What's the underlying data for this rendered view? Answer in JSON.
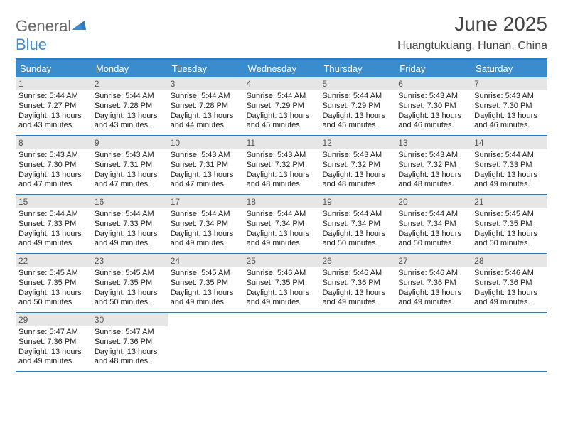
{
  "logo": {
    "text1": "General",
    "text2": "Blue"
  },
  "header": {
    "title": "June 2025",
    "location": "Huangtukuang, Hunan, China"
  },
  "colors": {
    "header_bar": "#3a8ccc",
    "week_divider": "#2f7bbf",
    "daynum_bg": "#e6e6e6",
    "text": "#222222",
    "logo_gray": "#6a6a6a",
    "logo_blue": "#3a8ccc"
  },
  "days_of_week": [
    "Sunday",
    "Monday",
    "Tuesday",
    "Wednesday",
    "Thursday",
    "Friday",
    "Saturday"
  ],
  "days": [
    {
      "n": "1",
      "sunrise": "5:44 AM",
      "sunset": "7:27 PM",
      "daylight": "13 hours and 43 minutes."
    },
    {
      "n": "2",
      "sunrise": "5:44 AM",
      "sunset": "7:28 PM",
      "daylight": "13 hours and 43 minutes."
    },
    {
      "n": "3",
      "sunrise": "5:44 AM",
      "sunset": "7:28 PM",
      "daylight": "13 hours and 44 minutes."
    },
    {
      "n": "4",
      "sunrise": "5:44 AM",
      "sunset": "7:29 PM",
      "daylight": "13 hours and 45 minutes."
    },
    {
      "n": "5",
      "sunrise": "5:44 AM",
      "sunset": "7:29 PM",
      "daylight": "13 hours and 45 minutes."
    },
    {
      "n": "6",
      "sunrise": "5:43 AM",
      "sunset": "7:30 PM",
      "daylight": "13 hours and 46 minutes."
    },
    {
      "n": "7",
      "sunrise": "5:43 AM",
      "sunset": "7:30 PM",
      "daylight": "13 hours and 46 minutes."
    },
    {
      "n": "8",
      "sunrise": "5:43 AM",
      "sunset": "7:30 PM",
      "daylight": "13 hours and 47 minutes."
    },
    {
      "n": "9",
      "sunrise": "5:43 AM",
      "sunset": "7:31 PM",
      "daylight": "13 hours and 47 minutes."
    },
    {
      "n": "10",
      "sunrise": "5:43 AM",
      "sunset": "7:31 PM",
      "daylight": "13 hours and 47 minutes."
    },
    {
      "n": "11",
      "sunrise": "5:43 AM",
      "sunset": "7:32 PM",
      "daylight": "13 hours and 48 minutes."
    },
    {
      "n": "12",
      "sunrise": "5:43 AM",
      "sunset": "7:32 PM",
      "daylight": "13 hours and 48 minutes."
    },
    {
      "n": "13",
      "sunrise": "5:43 AM",
      "sunset": "7:32 PM",
      "daylight": "13 hours and 48 minutes."
    },
    {
      "n": "14",
      "sunrise": "5:44 AM",
      "sunset": "7:33 PM",
      "daylight": "13 hours and 49 minutes."
    },
    {
      "n": "15",
      "sunrise": "5:44 AM",
      "sunset": "7:33 PM",
      "daylight": "13 hours and 49 minutes."
    },
    {
      "n": "16",
      "sunrise": "5:44 AM",
      "sunset": "7:33 PM",
      "daylight": "13 hours and 49 minutes."
    },
    {
      "n": "17",
      "sunrise": "5:44 AM",
      "sunset": "7:34 PM",
      "daylight": "13 hours and 49 minutes."
    },
    {
      "n": "18",
      "sunrise": "5:44 AM",
      "sunset": "7:34 PM",
      "daylight": "13 hours and 49 minutes."
    },
    {
      "n": "19",
      "sunrise": "5:44 AM",
      "sunset": "7:34 PM",
      "daylight": "13 hours and 50 minutes."
    },
    {
      "n": "20",
      "sunrise": "5:44 AM",
      "sunset": "7:34 PM",
      "daylight": "13 hours and 50 minutes."
    },
    {
      "n": "21",
      "sunrise": "5:45 AM",
      "sunset": "7:35 PM",
      "daylight": "13 hours and 50 minutes."
    },
    {
      "n": "22",
      "sunrise": "5:45 AM",
      "sunset": "7:35 PM",
      "daylight": "13 hours and 50 minutes."
    },
    {
      "n": "23",
      "sunrise": "5:45 AM",
      "sunset": "7:35 PM",
      "daylight": "13 hours and 50 minutes."
    },
    {
      "n": "24",
      "sunrise": "5:45 AM",
      "sunset": "7:35 PM",
      "daylight": "13 hours and 49 minutes."
    },
    {
      "n": "25",
      "sunrise": "5:46 AM",
      "sunset": "7:35 PM",
      "daylight": "13 hours and 49 minutes."
    },
    {
      "n": "26",
      "sunrise": "5:46 AM",
      "sunset": "7:36 PM",
      "daylight": "13 hours and 49 minutes."
    },
    {
      "n": "27",
      "sunrise": "5:46 AM",
      "sunset": "7:36 PM",
      "daylight": "13 hours and 49 minutes."
    },
    {
      "n": "28",
      "sunrise": "5:46 AM",
      "sunset": "7:36 PM",
      "daylight": "13 hours and 49 minutes."
    },
    {
      "n": "29",
      "sunrise": "5:47 AM",
      "sunset": "7:36 PM",
      "daylight": "13 hours and 49 minutes."
    },
    {
      "n": "30",
      "sunrise": "5:47 AM",
      "sunset": "7:36 PM",
      "daylight": "13 hours and 48 minutes."
    }
  ],
  "labels": {
    "sunrise": "Sunrise: ",
    "sunset": "Sunset: ",
    "daylight": "Daylight: "
  }
}
